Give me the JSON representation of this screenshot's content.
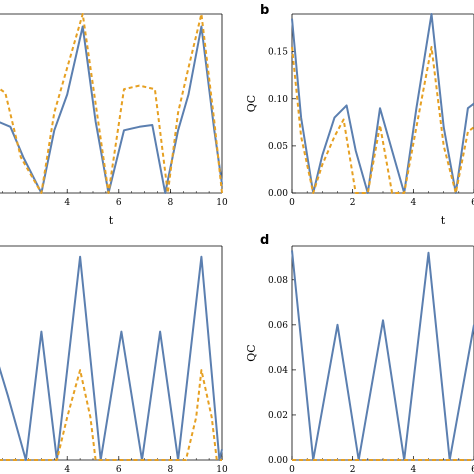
{
  "chart_data": [
    {
      "panel": "a",
      "type": "line",
      "letter": "",
      "xlabel": "t",
      "ylabel": "",
      "xlim": [
        0,
        10
      ],
      "ylim": [
        0,
        1
      ],
      "xticks": [
        4,
        6,
        8,
        10
      ],
      "yticks": [],
      "series": [
        {
          "style": "solid",
          "color": "#5b7fb0",
          "x": [
            0,
            0.9,
            1.3,
            1.8,
            2.3,
            3.0,
            3.5,
            4.0,
            4.6,
            5.1,
            5.6,
            6.2,
            6.8,
            7.3,
            7.8,
            8.3,
            8.7,
            9.2,
            9.7,
            10.0
          ],
          "y": [
            0.25,
            0.38,
            0.4,
            0.37,
            0.2,
            0.0,
            0.35,
            0.55,
            0.93,
            0.4,
            0.0,
            0.35,
            0.37,
            0.38,
            0.0,
            0.35,
            0.55,
            0.93,
            0.35,
            0.05
          ]
        },
        {
          "style": "dashed",
          "color": "#e6a022",
          "x": [
            0,
            0.8,
            1.2,
            1.6,
            2.2,
            3.0,
            3.5,
            4.0,
            4.6,
            5.1,
            5.6,
            6.2,
            6.8,
            7.4,
            7.9,
            8.3,
            8.7,
            9.2,
            9.7,
            10.0
          ],
          "y": [
            0.4,
            0.58,
            0.6,
            0.56,
            0.2,
            0.0,
            0.45,
            0.7,
            1.0,
            0.5,
            0.0,
            0.58,
            0.6,
            0.58,
            0.0,
            0.45,
            0.7,
            1.0,
            0.4,
            0.0
          ]
        }
      ]
    },
    {
      "panel": "b",
      "type": "line",
      "letter": "b",
      "xlabel": "t",
      "ylabel": "QC",
      "xlim": [
        0,
        6
      ],
      "ylim": [
        0,
        0.19
      ],
      "xticks": [
        0,
        2,
        4,
        6
      ],
      "xtick_labels": [
        "0",
        "2",
        "4",
        "6"
      ],
      "yticks": [
        0,
        0.05,
        0.1,
        0.15
      ],
      "ytick_labels": [
        "0.00",
        "0.05",
        "0.10",
        "0.15"
      ],
      "series": [
        {
          "style": "solid",
          "color": "#5b7fb0",
          "x": [
            0,
            0.3,
            0.7,
            1.0,
            1.4,
            1.8,
            2.1,
            2.5,
            2.9,
            3.3,
            3.7,
            4.1,
            4.6,
            5.0,
            5.4,
            5.8,
            6.0
          ],
          "y": [
            0.185,
            0.08,
            0.0,
            0.04,
            0.08,
            0.093,
            0.045,
            0.0,
            0.09,
            0.045,
            0.0,
            0.09,
            0.19,
            0.07,
            0.0,
            0.09,
            0.095
          ]
        },
        {
          "style": "dashed",
          "color": "#e6a022",
          "x": [
            0,
            0.3,
            0.7,
            1.0,
            1.4,
            1.7,
            2.1,
            2.5,
            2.9,
            3.3,
            3.7,
            4.1,
            4.6,
            5.0,
            5.4,
            5.8,
            6.0
          ],
          "y": [
            0.155,
            0.06,
            0.0,
            0.03,
            0.06,
            0.078,
            0.0,
            0.0,
            0.072,
            0.0,
            0.0,
            0.07,
            0.155,
            0.05,
            0.0,
            0.065,
            0.07
          ]
        }
      ]
    },
    {
      "panel": "c",
      "type": "line",
      "letter": "",
      "xlabel": "t",
      "ylabel": "",
      "xlim": [
        0,
        10
      ],
      "ylim": [
        0,
        1
      ],
      "xticks": [
        4,
        6,
        8,
        10
      ],
      "yticks": [],
      "series": [
        {
          "style": "solid",
          "color": "#5b7fb0",
          "x": [
            0,
            0.9,
            1.7,
            2.4,
            3.0,
            3.6,
            4.5,
            5.3,
            6.1,
            6.9,
            7.6,
            8.3,
            9.2,
            9.9,
            10.0
          ],
          "y": [
            0.15,
            0.62,
            0.3,
            0.0,
            0.6,
            0.0,
            0.95,
            0.0,
            0.6,
            0.0,
            0.6,
            0.0,
            0.95,
            0.0,
            0.05
          ]
        },
        {
          "style": "dashed",
          "color": "#e6a022",
          "x": [
            0,
            3.6,
            4.0,
            4.5,
            4.9,
            5.1,
            8.6,
            9.0,
            9.2,
            9.6,
            9.8,
            10.0
          ],
          "y": [
            0.0,
            0.0,
            0.2,
            0.42,
            0.2,
            0.0,
            0.0,
            0.2,
            0.42,
            0.2,
            0.0,
            0.0
          ]
        }
      ]
    },
    {
      "panel": "d",
      "type": "line",
      "letter": "d",
      "xlabel": "t",
      "ylabel": "QC",
      "xlim": [
        0,
        6
      ],
      "ylim": [
        0,
        0.095
      ],
      "xticks": [
        0,
        2,
        4,
        6
      ],
      "xtick_labels": [
        "0",
        "2",
        "4",
        "6"
      ],
      "yticks": [
        0,
        0.02,
        0.04,
        0.06,
        0.08
      ],
      "ytick_labels": [
        "0.00",
        "0.02",
        "0.04",
        "0.06",
        "0.08"
      ],
      "series": [
        {
          "style": "solid",
          "color": "#5b7fb0",
          "x": [
            0,
            0.7,
            1.5,
            2.2,
            3.0,
            3.7,
            4.5,
            5.2,
            6.0
          ],
          "y": [
            0.093,
            0.0,
            0.06,
            0.0,
            0.062,
            0.0,
            0.092,
            0.0,
            0.06
          ]
        },
        {
          "style": "dashed",
          "color": "#e6a022",
          "x": [
            0,
            6.0
          ],
          "y": [
            0.0,
            0.0
          ]
        }
      ]
    }
  ]
}
